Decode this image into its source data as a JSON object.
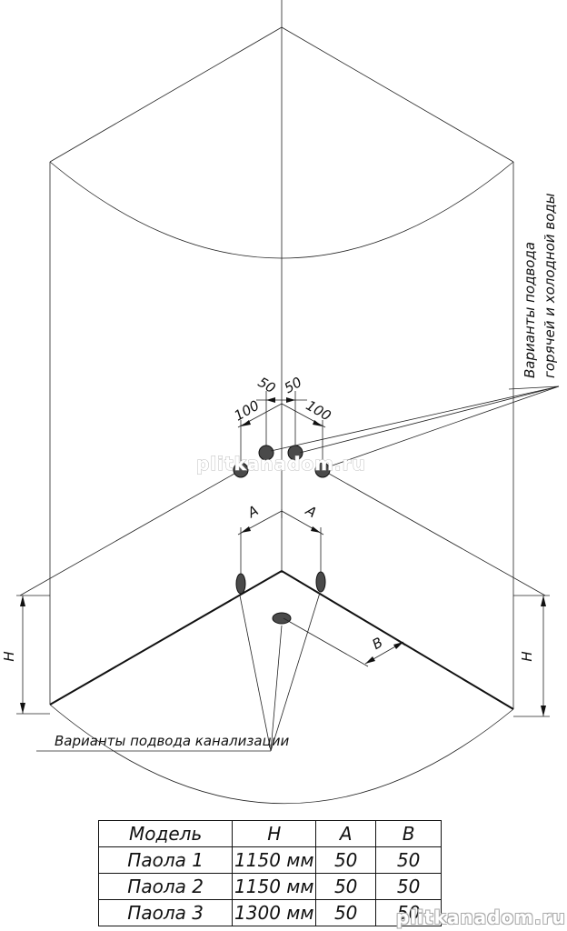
{
  "labels": {
    "dim_50_left": "50",
    "dim_50_right": "50",
    "dim_100_left": "100",
    "dim_100_right": "100",
    "dim_A_left": "A",
    "dim_A_right": "A",
    "dim_B": "B",
    "dim_H_left": "H",
    "dim_H_right": "H",
    "water_supply_line1": "Варианты подвода",
    "water_supply_line2": "горячей и холодной воды",
    "drain": "Варианты подвода канализации"
  },
  "watermark": {
    "center": "plitkanadom.ru",
    "bottom": "plitkanadom.ru"
  },
  "table": {
    "headers": [
      "Модель",
      "H",
      "A",
      "B"
    ],
    "rows": [
      [
        "Паола 1",
        "1150 мм",
        "50",
        "50"
      ],
      [
        "Паола 2",
        "1150 мм",
        "50",
        "50"
      ],
      [
        "Паола 3",
        "1300 мм",
        "50",
        "50"
      ]
    ]
  }
}
